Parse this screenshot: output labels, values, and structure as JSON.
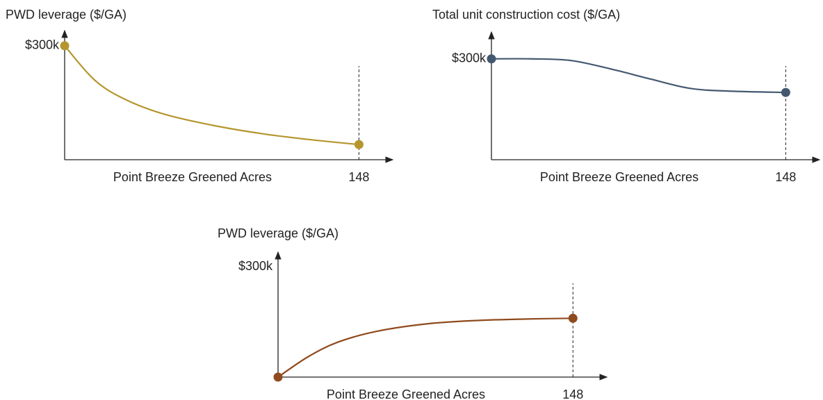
{
  "chart_data": [
    {
      "type": "line",
      "title": "PWD leverage ($/GA)",
      "x_label": "Point Breeze Greened Acres",
      "x": [
        0,
        15,
        30,
        50,
        75,
        100,
        125,
        148
      ],
      "series": [
        {
          "name": "PWD leverage",
          "color": "#b5962e",
          "values": [
            300000,
            210000,
            160000,
            120000,
            90000,
            68000,
            52000,
            40000
          ]
        }
      ],
      "xlim": [
        0,
        165
      ],
      "xticks": [
        148
      ],
      "ylim": [
        0,
        340000
      ],
      "yticks": [
        {
          "value": 300000,
          "label": "$300k"
        }
      ]
    },
    {
      "type": "line",
      "title": "Total unit construction cost ($/GA)",
      "x_label": "Point Breeze Greened Acres",
      "x": [
        0,
        20,
        40,
        60,
        80,
        100,
        120,
        148
      ],
      "series": [
        {
          "name": "Total unit construction cost",
          "color": "#435870",
          "values": [
            300000,
            300000,
            295000,
            270000,
            240000,
            212000,
            204000,
            200000
          ]
        }
      ],
      "xlim": [
        0,
        165
      ],
      "xticks": [
        148
      ],
      "ylim": [
        0,
        380000
      ],
      "yticks": [
        {
          "value": 300000,
          "label": "$300k"
        }
      ]
    },
    {
      "type": "line",
      "title": "PWD leverage ($/GA)",
      "x_label": "Point Breeze Greened Acres",
      "x": [
        0,
        15,
        30,
        50,
        75,
        100,
        125,
        148
      ],
      "series": [
        {
          "name": "PWD leverage",
          "color": "#8f4a1d",
          "values": [
            0,
            55000,
            95000,
            125000,
            145000,
            154000,
            158000,
            160000
          ]
        }
      ],
      "xlim": [
        0,
        165
      ],
      "xticks": [
        148
      ],
      "ylim": [
        0,
        340000
      ],
      "yticks": [
        {
          "value": 300000,
          "label": "$300k"
        }
      ]
    }
  ]
}
